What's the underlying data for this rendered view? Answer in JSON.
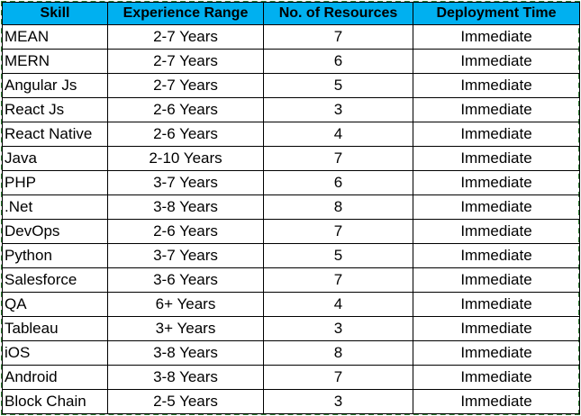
{
  "headers": [
    "Skill",
    "Experience Range",
    "No. of Resources",
    "Deployment Time"
  ],
  "rows": [
    {
      "skill": "MEAN",
      "experience": "2-7 Years",
      "resources": "7",
      "deployment": "Immediate"
    },
    {
      "skill": "MERN",
      "experience": "2-7 Years",
      "resources": "6",
      "deployment": "Immediate"
    },
    {
      "skill": "Angular Js",
      "experience": "2-7 Years",
      "resources": "5",
      "deployment": "Immediate"
    },
    {
      "skill": "React Js",
      "experience": "2-6 Years",
      "resources": "3",
      "deployment": "Immediate"
    },
    {
      "skill": "React Native",
      "experience": "2-6 Years",
      "resources": "4",
      "deployment": "Immediate"
    },
    {
      "skill": "Java",
      "experience": "2-10 Years",
      "resources": "7",
      "deployment": "Immediate"
    },
    {
      "skill": "PHP",
      "experience": "3-7 Years",
      "resources": "6",
      "deployment": "Immediate"
    },
    {
      "skill": ".Net",
      "experience": "3-8 Years",
      "resources": "8",
      "deployment": "Immediate"
    },
    {
      "skill": "DevOps",
      "experience": "2-6 Years",
      "resources": "7",
      "deployment": "Immediate"
    },
    {
      "skill": "Python",
      "experience": "3-7 Years",
      "resources": "5",
      "deployment": "Immediate"
    },
    {
      "skill": "Salesforce",
      "experience": "3-6 Years",
      "resources": "7",
      "deployment": "Immediate"
    },
    {
      "skill": "QA",
      "experience": "6+ Years",
      "resources": "4",
      "deployment": "Immediate"
    },
    {
      "skill": "Tableau",
      "experience": "3+ Years",
      "resources": "3",
      "deployment": "Immediate"
    },
    {
      "skill": "iOS",
      "experience": "3-8 Years",
      "resources": "8",
      "deployment": "Immediate"
    },
    {
      "skill": "Android",
      "experience": "3-8 Years",
      "resources": "7",
      "deployment": "Immediate"
    },
    {
      "skill": "Block Chain",
      "experience": "2-5 Years",
      "resources": "3",
      "deployment": "Immediate"
    }
  ],
  "colors": {
    "header_bg": "#00b0f0",
    "border_dashed": "#2e7d32"
  }
}
